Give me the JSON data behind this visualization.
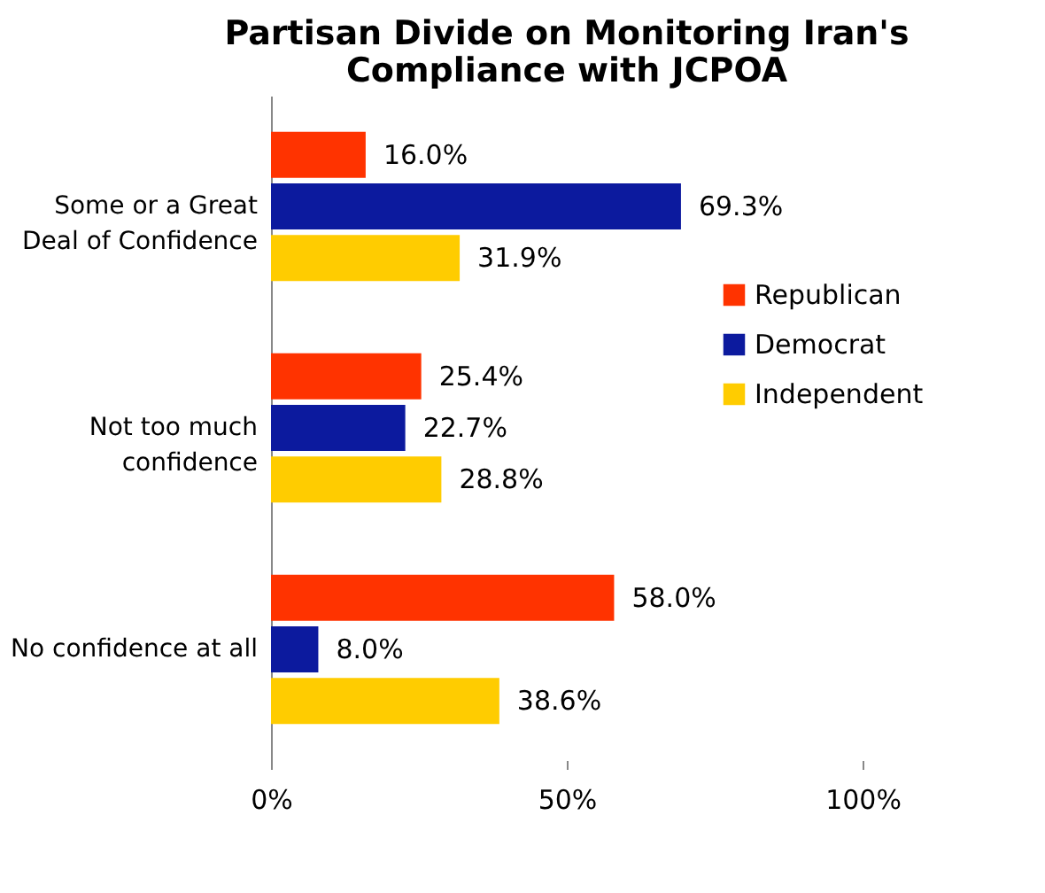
{
  "chart_data": {
    "type": "bar",
    "orientation": "horizontal",
    "title": "Partisan Divide on Monitoring Iran's Compliance with JCPOA",
    "categories": [
      "Some or a Great Deal of Confidence",
      "Not too much confidence",
      "No confidence at all"
    ],
    "series": [
      {
        "name": "Republican",
        "color": "#ff3300",
        "values": [
          16.0,
          25.4,
          58.0
        ],
        "value_labels": [
          "16.0%",
          "25.4%",
          "58.0%"
        ]
      },
      {
        "name": "Democrat",
        "color": "#0c1a9e",
        "values": [
          69.3,
          22.7,
          8.0
        ],
        "value_labels": [
          "69.3%",
          "22.7%",
          "8.0%"
        ]
      },
      {
        "name": "Independent",
        "color": "#ffcc00",
        "values": [
          31.9,
          28.8,
          38.6
        ],
        "value_labels": [
          "31.9%",
          "28.8%",
          "38.6%"
        ]
      }
    ],
    "xlim": [
      0,
      100
    ],
    "xticks": [
      {
        "value": 0,
        "label": "0%"
      },
      {
        "value": 50,
        "label": "50%"
      },
      {
        "value": 100,
        "label": "100%"
      }
    ],
    "grid": false,
    "legend": "right"
  }
}
